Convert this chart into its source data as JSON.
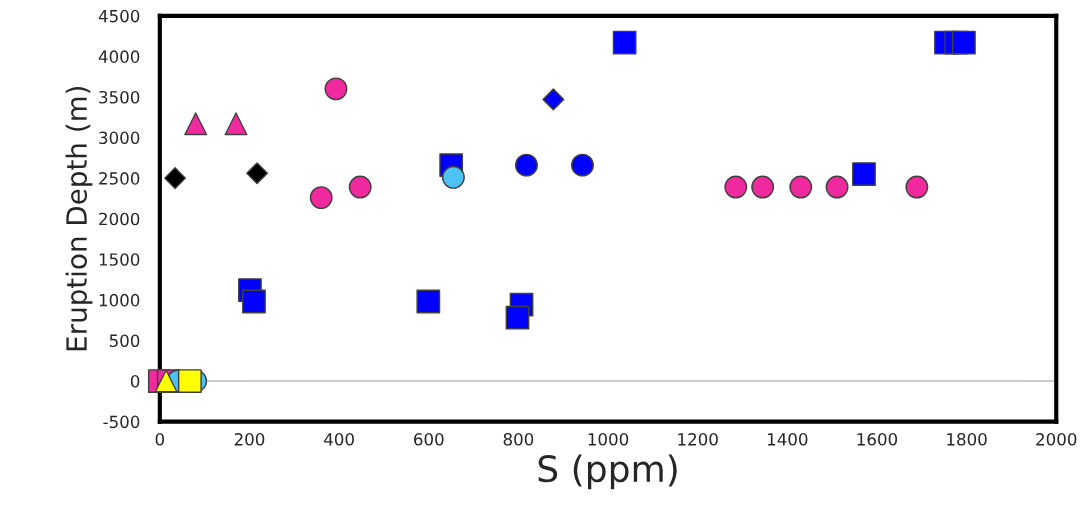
{
  "chart_data": {
    "type": "scatter",
    "xlabel": "S (ppm)",
    "ylabel": "Eruption Depth (m)",
    "xlim": [
      0,
      2000
    ],
    "ylim": [
      -500,
      4500
    ],
    "xticks": [
      0,
      200,
      400,
      600,
      800,
      1000,
      1200,
      1400,
      1600,
      1800,
      2000
    ],
    "yticks": [
      -500,
      0,
      500,
      1000,
      1500,
      2000,
      2500,
      3000,
      3500,
      4000,
      4500
    ],
    "grid": false,
    "legend": false,
    "ref_lines": [
      {
        "axis": "y",
        "value": 0,
        "color": "#bfbfbf"
      }
    ],
    "series": [
      {
        "color": "#f02a9e",
        "marker": "circle",
        "x": [
          360,
          393,
          447,
          1285,
          1345,
          1430,
          1511,
          1689
        ],
        "values": [
          2260,
          3600,
          2390,
          2390,
          2390,
          2390,
          2390,
          2390
        ]
      },
      {
        "color": "#f02a9e",
        "marker": "triangle",
        "x": [
          80,
          170
        ],
        "values": [
          3170,
          3170
        ]
      },
      {
        "color": "#f02a9e",
        "marker": "square",
        "x": [
          0,
          20
        ],
        "values": [
          0,
          0
        ]
      },
      {
        "color": "#000000",
        "marker": "diamond",
        "x": [
          34,
          217
        ],
        "values": [
          2500,
          2560
        ]
      },
      {
        "color": "#0000ff",
        "marker": "square",
        "x": [
          201,
          210,
          599,
          650,
          807,
          798,
          1037,
          1571,
          1754,
          1777,
          1794
        ],
        "values": [
          1120,
          980,
          980,
          2660,
          940,
          780,
          4170,
          2550,
          4170,
          4170,
          4170
        ]
      },
      {
        "color": "#0000ff",
        "marker": "circle",
        "x": [
          818,
          943
        ],
        "values": [
          2660,
          2660
        ]
      },
      {
        "color": "#0000ff",
        "marker": "diamond",
        "x": [
          878
        ],
        "values": [
          3470
        ]
      },
      {
        "color": "#4cc2f5",
        "marker": "circle",
        "x": [
          655,
          40,
          80
        ],
        "values": [
          2510,
          0,
          0
        ]
      },
      {
        "color": "#ffff00",
        "marker": "square",
        "x": [
          67
        ],
        "values": [
          0
        ]
      },
      {
        "color": "#ffff00",
        "marker": "triangle",
        "x": [
          14
        ],
        "values": [
          0
        ]
      }
    ]
  }
}
